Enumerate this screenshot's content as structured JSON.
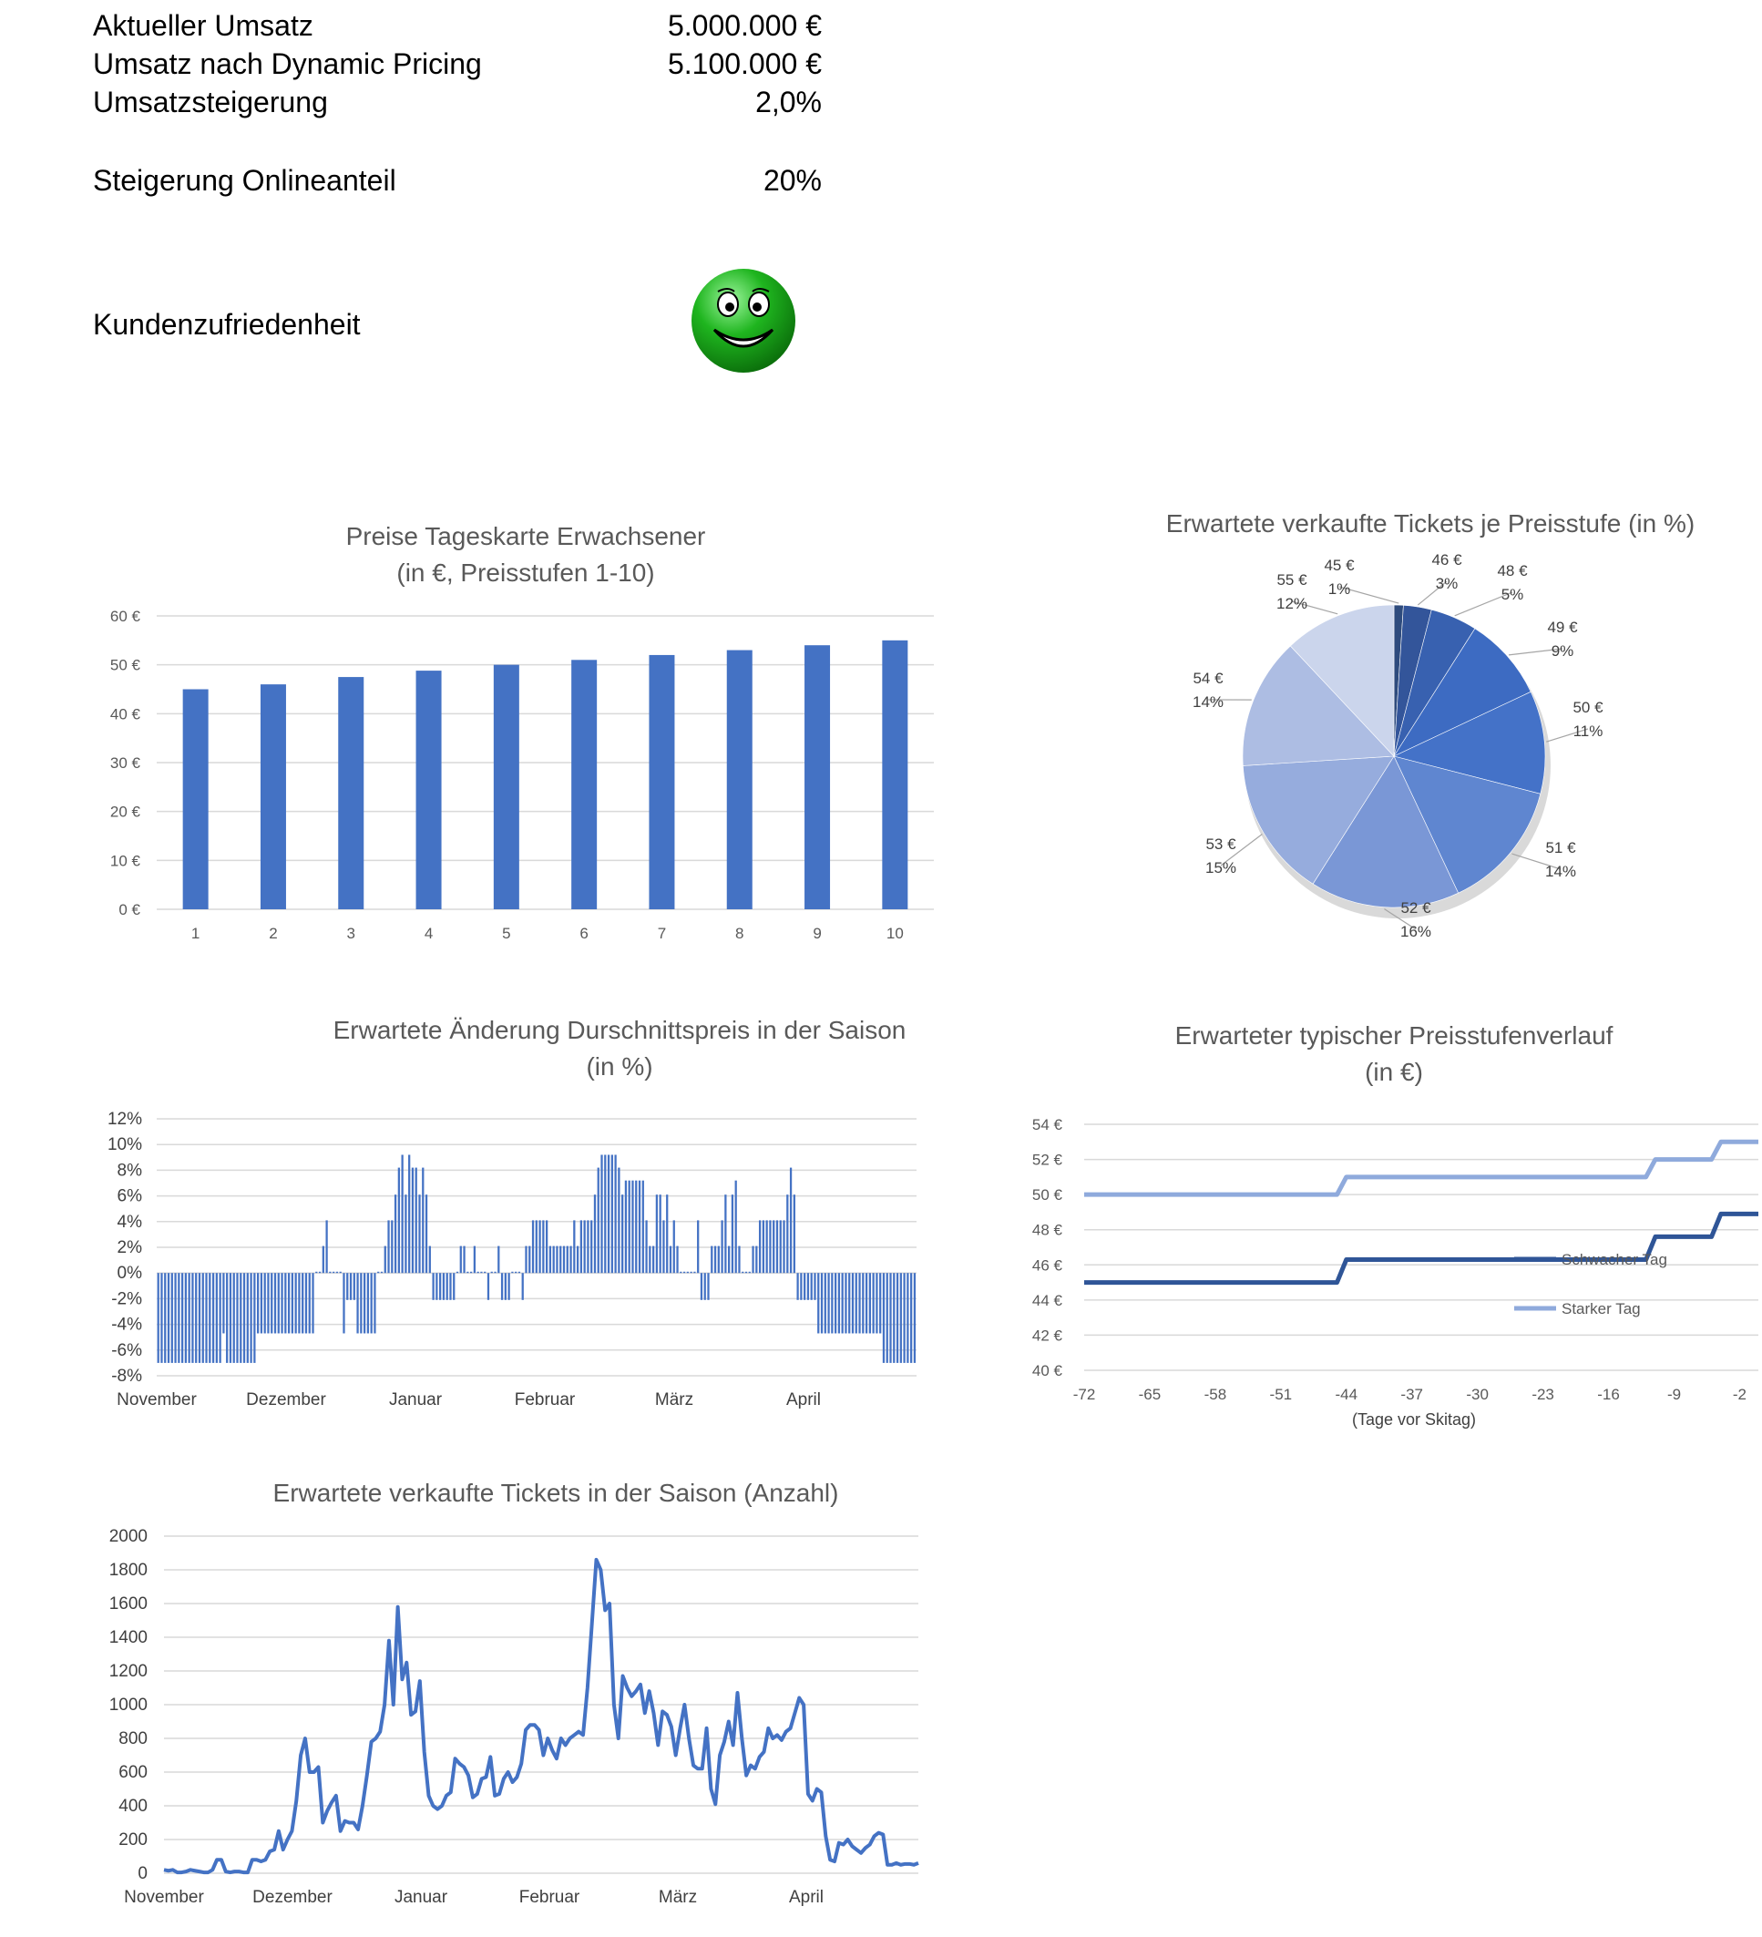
{
  "summary": {
    "rows": [
      {
        "label": "Aktueller Umsatz",
        "value": "5.000.000 €"
      },
      {
        "label": "Umsatz nach Dynamic Pricing",
        "value": "5.100.000 €"
      },
      {
        "label": "Umsatzsteigerung",
        "value": "2,0%"
      },
      {
        "label": "Steigerung Onlineanteil",
        "value": "20%"
      },
      {
        "label": "Kundenzufriedenheit",
        "value": ""
      }
    ],
    "satisfaction_icon": "smiley-face-icon",
    "smiley_color": "#1fb51f"
  },
  "colors": {
    "accent": "#4472c4",
    "accent_light": "#8faadc",
    "grid": "#d9d9d9",
    "axis_text": "#595959"
  },
  "chart_data": [
    {
      "id": "prices",
      "type": "bar",
      "title": "Preise Tageskarte Erwachsener",
      "subtitle": "(in €, Preisstufen 1-10)",
      "categories": [
        "1",
        "2",
        "3",
        "4",
        "5",
        "6",
        "7",
        "8",
        "9",
        "10"
      ],
      "values": [
        45,
        46,
        47.5,
        48.8,
        50,
        51,
        52,
        53,
        54,
        55
      ],
      "ylim": [
        0,
        60
      ],
      "yticks": [
        "0 €",
        "10 €",
        "20 €",
        "30 €",
        "40 €",
        "50 €",
        "60 €"
      ],
      "grid": true
    },
    {
      "id": "share",
      "type": "pie",
      "title": "Erwartete verkaufte Tickets je Preisstufe (in %)",
      "slices": [
        {
          "label": "45 €",
          "pct": "1%",
          "value": 1,
          "color": "#2e4b7d"
        },
        {
          "label": "46 €",
          "pct": "3%",
          "value": 3,
          "color": "#33559a"
        },
        {
          "label": "48 €",
          "pct": "5%",
          "value": 5,
          "color": "#3861b0"
        },
        {
          "label": "49 €",
          "pct": "9%",
          "value": 9,
          "color": "#3d6bc2"
        },
        {
          "label": "50 €",
          "pct": "11%",
          "value": 11,
          "color": "#4472c8"
        },
        {
          "label": "51 €",
          "pct": "14%",
          "value": 14,
          "color": "#5f86d0"
        },
        {
          "label": "52 €",
          "pct": "16%",
          "value": 16,
          "color": "#7a97d6"
        },
        {
          "label": "53 €",
          "pct": "15%",
          "value": 15,
          "color": "#96acdd"
        },
        {
          "label": "54 €",
          "pct": "14%",
          "value": 14,
          "color": "#adbde3"
        },
        {
          "label": "55 €",
          "pct": "12%",
          "value": 12,
          "color": "#cbd5ec"
        }
      ]
    },
    {
      "id": "change",
      "type": "bar",
      "title": "Erwartete Änderung Durschnittspreis in der Saison",
      "subtitle": "(in %)",
      "ylim": [
        -8,
        12
      ],
      "yticks": [
        "-8%",
        "-6%",
        "-4%",
        "-2%",
        "0%",
        "2%",
        "4%",
        "6%",
        "8%",
        "10%",
        "12%"
      ],
      "xlabels": [
        "November",
        "Dezember",
        "Januar",
        "Februar",
        "März",
        "April"
      ],
      "values": [
        -7,
        -7,
        -7,
        -7,
        -7,
        -7,
        -7,
        -7,
        -7,
        -7,
        -7,
        -7,
        -7,
        -7,
        -7,
        -7,
        -7,
        -7,
        -7,
        -4.7,
        -7,
        -7,
        -7,
        -7,
        -7,
        -7,
        -7,
        -7,
        -7,
        -4.7,
        -4.7,
        -4.7,
        -4.7,
        -4.7,
        -4.7,
        -4.7,
        -4.7,
        -4.7,
        -4.7,
        -4.7,
        -4.7,
        -4.7,
        -4.7,
        -4.7,
        -4.7,
        -4.7,
        0.1,
        0.1,
        2.1,
        4.1,
        0.1,
        0.1,
        0.1,
        0.1,
        -4.7,
        -2.1,
        -2.1,
        -2.1,
        -4.7,
        -4.7,
        -4.7,
        -4.7,
        -4.7,
        -4.7,
        0.1,
        0.1,
        2.1,
        4.1,
        4.1,
        6.1,
        8.2,
        9.2,
        6.1,
        9.2,
        8.2,
        8.2,
        6.1,
        8.2,
        6.1,
        2.1,
        -2.1,
        -2.1,
        -2.1,
        -2.1,
        -2.1,
        -2.1,
        -2.1,
        0.1,
        2.1,
        2.1,
        0.1,
        0.1,
        2.1,
        0.1,
        0.1,
        0.1,
        -2.1,
        0.1,
        0.1,
        2.1,
        -2.1,
        -2.1,
        -2.1,
        0.1,
        0.1,
        0.1,
        -2.1,
        2.1,
        2.1,
        4.1,
        4.1,
        4.1,
        4.1,
        4.1,
        2.1,
        2.1,
        2.1,
        2.1,
        2.1,
        2.1,
        2.1,
        4.1,
        2.1,
        4.1,
        4.1,
        4.1,
        4.1,
        6.1,
        8.2,
        9.2,
        9.2,
        9.2,
        9.2,
        9.2,
        8.2,
        6.1,
        7.2,
        7.2,
        7.2,
        7.2,
        7.2,
        7.2,
        4.1,
        2.1,
        2.1,
        6.1,
        6.1,
        4.1,
        6.1,
        2.1,
        4.1,
        2.1,
        0.1,
        0.1,
        0.1,
        0.1,
        0.1,
        4.1,
        -2.1,
        -2.1,
        -2.1,
        2.1,
        2.1,
        2.1,
        4.1,
        6.1,
        2.1,
        6.1,
        7.2,
        2.1,
        0.1,
        0.1,
        0.1,
        2.1,
        2.1,
        4.1,
        4.1,
        4.1,
        4.1,
        4.1,
        4.1,
        4.1,
        4.1,
        6.1,
        8.2,
        6.1,
        -2.1,
        -2.1,
        -2.1,
        -2.1,
        -2.1,
        -2.1,
        -4.7,
        -4.7,
        -4.7,
        -4.7,
        -4.7,
        -4.7,
        -4.7,
        -4.7,
        -4.7,
        -4.7,
        -4.7,
        -4.7,
        -4.7,
        -4.7,
        -4.7,
        -4.7,
        -4.7,
        -4.7,
        -4.7,
        -7,
        -7,
        -7,
        -7,
        -7,
        -7,
        -7,
        -7,
        -7,
        -7
      ],
      "grid": true
    },
    {
      "id": "curve",
      "type": "line",
      "title": "Erwarteter typischer Preisstufenverlauf",
      "subtitle": "(in €)",
      "xlabel": "(Tage vor Skitag)",
      "xlim": [
        -72,
        0
      ],
      "xticks": [
        -72,
        -65,
        -58,
        -51,
        -44,
        -37,
        -30,
        -23,
        -16,
        -9,
        -2
      ],
      "ylim": [
        40,
        54
      ],
      "yticks": [
        "40 €",
        "42 €",
        "44 €",
        "46 €",
        "48 €",
        "50 €",
        "52 €",
        "54 €"
      ],
      "legend_position": "right",
      "series": [
        {
          "name": "Schwacher Tag",
          "color": "#2f5597",
          "width": 5,
          "x": [
            -72,
            -45,
            -44,
            -12,
            -11,
            -5,
            -4,
            0
          ],
          "y": [
            45,
            45,
            46.3,
            46.3,
            47.6,
            47.6,
            48.9,
            48.9
          ]
        },
        {
          "name": "Starker Tag",
          "color": "#8faadc",
          "width": 5,
          "x": [
            -72,
            -45,
            -44,
            -12,
            -11,
            -5,
            -4,
            0
          ],
          "y": [
            50,
            50,
            51,
            51,
            52,
            52,
            53,
            53
          ]
        }
      ],
      "grid": true
    },
    {
      "id": "tickets",
      "type": "line",
      "title": "Erwartete verkaufte Tickets in der Saison (Anzahl)",
      "ylim": [
        0,
        2000
      ],
      "yticks": [
        "0",
        "200",
        "400",
        "600",
        "800",
        "1000",
        "1200",
        "1400",
        "1600",
        "1800",
        "2000"
      ],
      "xlabels": [
        "November",
        "Dezember",
        "Januar",
        "Februar",
        "März",
        "April"
      ],
      "values": [
        20,
        15,
        20,
        5,
        5,
        10,
        20,
        15,
        10,
        5,
        5,
        20,
        80,
        80,
        10,
        5,
        10,
        10,
        5,
        5,
        80,
        80,
        70,
        80,
        130,
        140,
        250,
        140,
        200,
        250,
        430,
        700,
        800,
        600,
        600,
        630,
        300,
        370,
        420,
        460,
        250,
        310,
        300,
        300,
        260,
        400,
        580,
        780,
        800,
        840,
        1000,
        1380,
        1000,
        1580,
        1150,
        1250,
        940,
        960,
        1140,
        720,
        460,
        400,
        380,
        400,
        460,
        480,
        680,
        650,
        630,
        580,
        450,
        470,
        560,
        570,
        690,
        460,
        470,
        560,
        600,
        540,
        570,
        650,
        850,
        880,
        880,
        850,
        700,
        800,
        730,
        680,
        800,
        760,
        800,
        820,
        840,
        820,
        1100,
        1480,
        1860,
        1800,
        1560,
        1600,
        1000,
        800,
        1170,
        1100,
        1050,
        1080,
        1120,
        950,
        1080,
        950,
        760,
        960,
        940,
        870,
        700,
        860,
        1000,
        800,
        640,
        620,
        620,
        860,
        500,
        410,
        700,
        780,
        900,
        760,
        1070,
        800,
        580,
        640,
        620,
        690,
        720,
        860,
        800,
        820,
        790,
        840,
        860,
        950,
        1040,
        1000,
        470,
        430,
        500,
        480,
        220,
        80,
        70,
        180,
        170,
        200,
        160,
        140,
        120,
        150,
        170,
        220,
        240,
        230,
        50,
        50,
        60,
        50,
        55,
        55,
        50,
        60
      ]
    }
  ]
}
